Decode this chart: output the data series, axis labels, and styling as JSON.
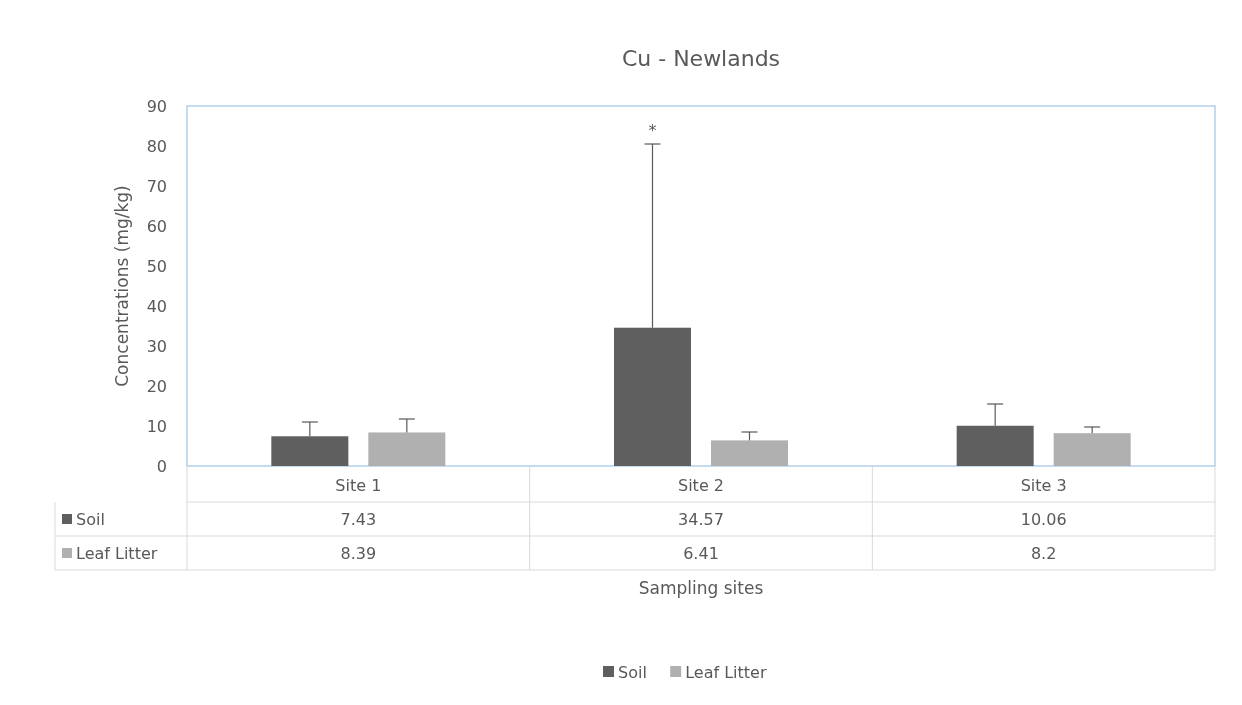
{
  "chart_data": {
    "type": "bar",
    "title": "Cu - Newlands",
    "xlabel": "Sampling sites",
    "ylabel": "Concentrations (mg/kg)",
    "categories": [
      "Site 1",
      "Site 2",
      "Site 3"
    ],
    "series": [
      {
        "name": "Soil",
        "color": "#5f5f5f",
        "values": [
          7.43,
          34.57,
          10.06
        ],
        "errors": [
          [
            7.43,
            11
          ],
          [
            34.57,
            80.5
          ],
          [
            10.06,
            15.5
          ]
        ]
      },
      {
        "name": "Leaf Litter",
        "color": "#b0b0b0",
        "values": [
          8.39,
          6.41,
          8.2
        ],
        "errors": [
          [
            8.39,
            11.75
          ],
          [
            6.41,
            8.5
          ],
          [
            8.2,
            9.75
          ]
        ]
      }
    ],
    "ylim": [
      0,
      90
    ],
    "yticks": [
      0,
      10,
      20,
      30,
      40,
      50,
      60,
      70,
      80,
      90
    ],
    "annotations": [
      "*"
    ],
    "data_labels": true,
    "legend": "bottom",
    "grid": false
  }
}
